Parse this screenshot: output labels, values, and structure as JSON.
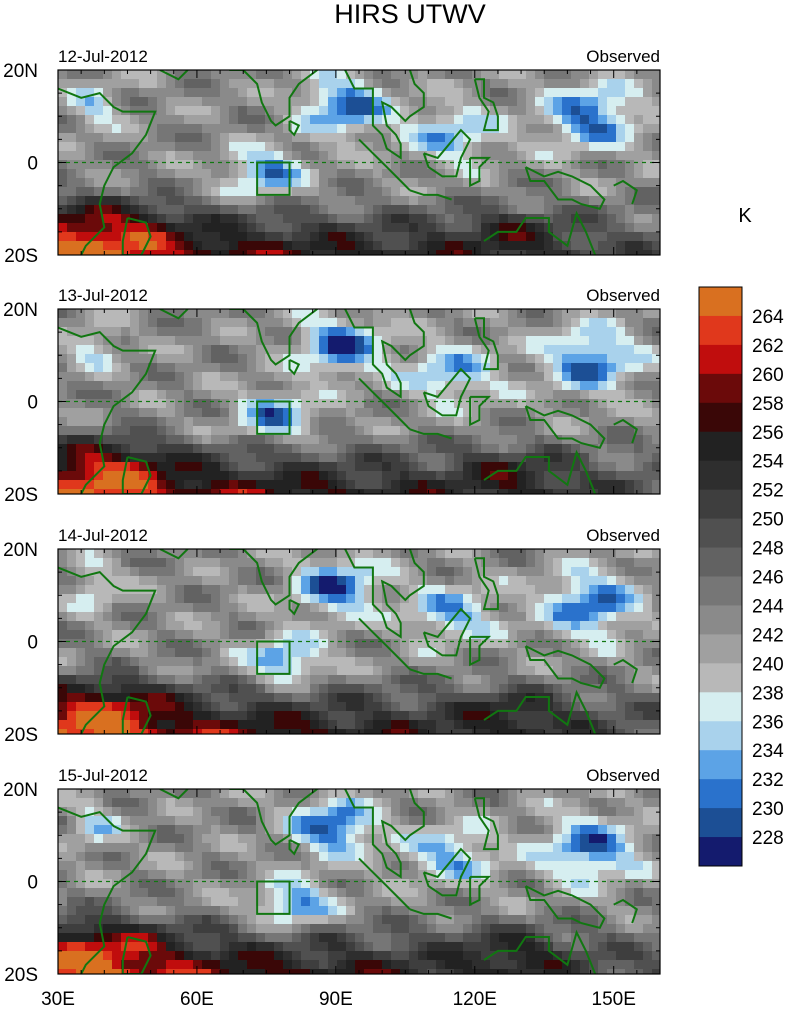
{
  "chart_data": {
    "type": "heatmap",
    "title": "HIRS UTWV",
    "panel_status": "Observed",
    "panels": [
      {
        "date": "12-Jul-2012",
        "status": "Observed"
      },
      {
        "date": "13-Jul-2012",
        "status": "Observed"
      },
      {
        "date": "14-Jul-2012",
        "status": "Observed"
      },
      {
        "date": "15-Jul-2012",
        "status": "Observed"
      }
    ],
    "x_ticks": [
      "30E",
      "60E",
      "90E",
      "120E",
      "150E"
    ],
    "x_tick_values": [
      30,
      60,
      90,
      120,
      150
    ],
    "xlim": [
      30,
      160
    ],
    "y_ticks": [
      "20N",
      "0",
      "20S"
    ],
    "y_tick_values": [
      20,
      0,
      -20
    ],
    "ylim": [
      -20,
      20
    ],
    "colorbar": {
      "unit": "K",
      "levels": [
        228,
        230,
        232,
        234,
        236,
        238,
        240,
        242,
        244,
        246,
        248,
        250,
        252,
        254,
        256,
        258,
        260,
        262,
        264
      ],
      "labels": [
        "228",
        "230",
        "232",
        "234",
        "236",
        "238",
        "240",
        "242",
        "244",
        "246",
        "248",
        "250",
        "252",
        "254",
        "256",
        "258",
        "260",
        "262",
        "264"
      ],
      "colors": [
        "#141b6e",
        "#1c4f95",
        "#2a72cc",
        "#5ca3e6",
        "#a9d2ec",
        "#d6eef0",
        "#b8b8b8",
        "#a0a0a0",
        "#8a8a8a",
        "#767676",
        "#626262",
        "#505050",
        "#3e3e3e",
        "#2e2e2e",
        "#222222",
        "#3a0707",
        "#6b0a0a",
        "#c00d0d",
        "#e0381c",
        "#d97020"
      ]
    },
    "overlays": {
      "coastline_color": "#117711",
      "equator_line": "dashed",
      "box_region": {
        "lon": [
          73,
          80
        ],
        "lat": [
          -7,
          0
        ]
      }
    }
  }
}
